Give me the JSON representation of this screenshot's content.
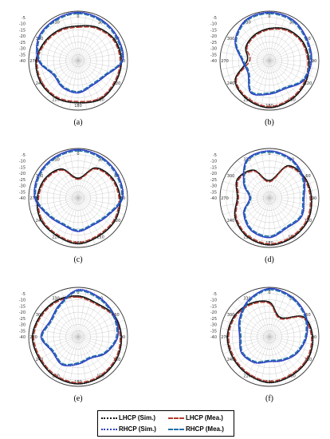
{
  "colors": {
    "lhcp_sim": "#111111",
    "lhcp_mea": "#b03a2e",
    "rhcp_sim": "#2d3fc4",
    "rhcp_mea": "#1f6fa8",
    "grid": "#bdbdbd"
  },
  "legend": {
    "lhcp_sim": "LHCP (Sim.)",
    "lhcp_mea": "LHCP (Mea.)",
    "rhcp_sim": "RHCP (Sim.)",
    "rhcp_mea": "RHCP (Mea.)"
  },
  "chart_data": [
    {
      "type": "polar",
      "label": "(a)",
      "angle_ticks": [
        "0",
        "30",
        "60",
        "90",
        "120",
        "150",
        "180",
        "210",
        "240",
        "270",
        "300",
        "330"
      ],
      "radial_ticks": [
        "-5",
        "-10",
        "-15",
        "-20",
        "-25",
        "-30",
        "-35",
        "-40"
      ],
      "rlim": [
        -40,
        0
      ],
      "series": [
        {
          "name": "LHCP (Sim.)",
          "angles": [
            0,
            30,
            60,
            90,
            120,
            150,
            180,
            210,
            240,
            270,
            300,
            330
          ],
          "values": [
            -12,
            -9,
            -6,
            -5,
            -5,
            -4,
            -6,
            -5,
            -5,
            -6,
            -9,
            -11
          ]
        },
        {
          "name": "LHCP (Mea.)",
          "angles": [
            0,
            30,
            60,
            90,
            120,
            150,
            180,
            210,
            240,
            270,
            300,
            330
          ],
          "values": [
            -13,
            -10,
            -7,
            -6,
            -6,
            -5,
            -7,
            -6,
            -6,
            -7,
            -10,
            -12
          ]
        },
        {
          "name": "RHCP (Sim.)",
          "angles": [
            0,
            30,
            60,
            90,
            120,
            150,
            180,
            210,
            240,
            270,
            300,
            330
          ],
          "values": [
            -1,
            -2,
            -3,
            -4,
            -15,
            -17,
            -14,
            -15,
            -17,
            -8,
            -3,
            -2
          ]
        },
        {
          "name": "RHCP (Mea.)",
          "angles": [
            0,
            30,
            60,
            90,
            120,
            150,
            180,
            210,
            240,
            270,
            300,
            330
          ],
          "values": [
            -2,
            -3,
            -4,
            -5,
            -16,
            -18,
            -15,
            -16,
            -18,
            -9,
            -4,
            -3
          ]
        }
      ]
    },
    {
      "type": "polar",
      "label": "(b)",
      "angle_ticks": [
        "0",
        "30",
        "60",
        "90",
        "120",
        "150",
        "180",
        "210",
        "240",
        "270",
        "300",
        "330"
      ],
      "radial_ticks": [
        "-5",
        "-10",
        "-15",
        "-20",
        "-25",
        "-30",
        "-35",
        "-40"
      ],
      "rlim": [
        -40,
        0
      ],
      "series": [
        {
          "name": "LHCP (Sim.)",
          "angles": [
            0,
            30,
            60,
            90,
            120,
            150,
            180,
            210,
            240,
            270,
            300,
            330
          ],
          "values": [
            -14,
            -11,
            -9,
            -8,
            -6,
            -4,
            -2,
            -4,
            -8,
            -22,
            -18,
            -16
          ]
        },
        {
          "name": "LHCP (Mea.)",
          "angles": [
            0,
            30,
            60,
            90,
            120,
            150,
            180,
            210,
            240,
            270,
            300,
            330
          ],
          "values": [
            -15,
            -12,
            -10,
            -9,
            -7,
            -5,
            -3,
            -5,
            -9,
            -24,
            -19,
            -17
          ]
        },
        {
          "name": "RHCP (Sim.)",
          "angles": [
            0,
            30,
            60,
            90,
            120,
            150,
            180,
            210,
            240,
            270,
            300,
            330
          ],
          "values": [
            -1,
            -2,
            -5,
            -6,
            -8,
            -14,
            -13,
            -10,
            -20,
            -18,
            -8,
            -2
          ]
        },
        {
          "name": "RHCP (Mea.)",
          "angles": [
            0,
            30,
            60,
            90,
            120,
            150,
            180,
            210,
            240,
            270,
            300,
            330
          ],
          "values": [
            -2,
            -3,
            -6,
            -7,
            -9,
            -15,
            -14,
            -11,
            -21,
            -19,
            -9,
            -3
          ]
        }
      ]
    },
    {
      "type": "polar",
      "label": "(c)",
      "angle_ticks": [
        "0",
        "30",
        "60",
        "90",
        "120",
        "150",
        "180",
        "210",
        "240",
        "270",
        "300",
        "330"
      ],
      "radial_ticks": [
        "-5",
        "-10",
        "-15",
        "-20",
        "-25",
        "-30",
        "-35",
        "-40"
      ],
      "rlim": [
        -40,
        0
      ],
      "series": [
        {
          "name": "LHCP (Sim.)",
          "angles": [
            0,
            30,
            60,
            90,
            120,
            150,
            180,
            210,
            240,
            270,
            300,
            330
          ],
          "values": [
            -24,
            -12,
            -8,
            -6,
            -5,
            -5,
            -3,
            -5,
            -5,
            -7,
            -9,
            -13
          ]
        },
        {
          "name": "LHCP (Mea.)",
          "angles": [
            0,
            30,
            60,
            90,
            120,
            150,
            180,
            210,
            240,
            270,
            300,
            330
          ],
          "values": [
            -25,
            -13,
            -9,
            -7,
            -6,
            -6,
            -4,
            -6,
            -6,
            -8,
            -10,
            -14
          ]
        },
        {
          "name": "RHCP (Sim.)",
          "angles": [
            0,
            30,
            60,
            90,
            120,
            150,
            180,
            210,
            240,
            270,
            300,
            330
          ],
          "values": [
            -1,
            -2,
            -3,
            -4,
            -12,
            -15,
            -13,
            -15,
            -12,
            -5,
            -3,
            -2
          ]
        },
        {
          "name": "RHCP (Mea.)",
          "angles": [
            0,
            30,
            60,
            90,
            120,
            150,
            180,
            210,
            240,
            270,
            300,
            330
          ],
          "values": [
            -2,
            -3,
            -4,
            -5,
            -13,
            -16,
            -14,
            -16,
            -13,
            -6,
            -4,
            -3
          ]
        }
      ]
    },
    {
      "type": "polar",
      "label": "(d)",
      "angle_ticks": [
        "0",
        "30",
        "60",
        "90",
        "120",
        "150",
        "180",
        "210",
        "240",
        "270",
        "300",
        "330"
      ],
      "radial_ticks": [
        "-5",
        "-10",
        "-15",
        "-20",
        "-25",
        "-30",
        "-35",
        "-40"
      ],
      "rlim": [
        -40,
        0
      ],
      "series": [
        {
          "name": "LHCP (Sim.)",
          "angles": [
            0,
            30,
            60,
            90,
            120,
            150,
            180,
            210,
            240,
            270,
            300,
            330
          ],
          "values": [
            -26,
            -10,
            -7,
            -6,
            -4,
            -3,
            -2,
            -4,
            -8,
            -14,
            -10,
            -14
          ]
        },
        {
          "name": "LHCP (Mea.)",
          "angles": [
            0,
            30,
            60,
            90,
            120,
            150,
            180,
            210,
            240,
            270,
            300,
            330
          ],
          "values": [
            -27,
            -11,
            -8,
            -7,
            -5,
            -4,
            -3,
            -5,
            -9,
            -15,
            -11,
            -15
          ]
        },
        {
          "name": "RHCP (Sim.)",
          "angles": [
            0,
            30,
            60,
            90,
            120,
            150,
            180,
            210,
            240,
            270,
            300,
            330
          ],
          "values": [
            -2,
            -4,
            -8,
            -12,
            -10,
            -12,
            -8,
            -10,
            -16,
            -24,
            -16,
            -4
          ]
        },
        {
          "name": "RHCP (Mea.)",
          "angles": [
            0,
            30,
            60,
            90,
            120,
            150,
            180,
            210,
            240,
            270,
            300,
            330
          ],
          "values": [
            -3,
            -5,
            -9,
            -13,
            -11,
            -13,
            -9,
            -11,
            -17,
            -25,
            -17,
            -5
          ]
        }
      ]
    },
    {
      "type": "polar",
      "label": "(e)",
      "angle_ticks": [
        "0",
        "30",
        "60",
        "90",
        "120",
        "150",
        "180",
        "210",
        "240",
        "270",
        "300",
        "330"
      ],
      "radial_ticks": [
        "-5",
        "-10",
        "-15",
        "-20",
        "-25",
        "-30",
        "-35",
        "-40"
      ],
      "rlim": [
        -40,
        0
      ],
      "series": [
        {
          "name": "LHCP (Sim.)",
          "angles": [
            0,
            30,
            60,
            90,
            120,
            150,
            180,
            210,
            240,
            270,
            300,
            330
          ],
          "values": [
            -7,
            -9,
            -6,
            -5,
            -4,
            -3,
            -2,
            -3,
            -4,
            -3,
            -5,
            -6
          ]
        },
        {
          "name": "LHCP (Mea.)",
          "angles": [
            0,
            30,
            60,
            90,
            120,
            150,
            180,
            210,
            240,
            270,
            300,
            330
          ],
          "values": [
            -8,
            -10,
            -7,
            -6,
            -5,
            -4,
            -3,
            -4,
            -5,
            -4,
            -6,
            -7
          ]
        },
        {
          "name": "RHCP (Sim.)",
          "angles": [
            0,
            30,
            60,
            90,
            120,
            150,
            180,
            210,
            240,
            270,
            300,
            330
          ],
          "values": [
            -2,
            -4,
            -6,
            -8,
            -14,
            -20,
            -18,
            -14,
            -16,
            -10,
            -14,
            -10
          ]
        },
        {
          "name": "RHCP (Mea.)",
          "angles": [
            0,
            30,
            60,
            90,
            120,
            150,
            180,
            210,
            240,
            270,
            300,
            330
          ],
          "values": [
            -3,
            -5,
            -7,
            -9,
            -15,
            -21,
            -19,
            -15,
            -17,
            -11,
            -15,
            -11
          ]
        }
      ]
    },
    {
      "type": "polar",
      "label": "(f)",
      "angle_ticks": [
        "0",
        "30",
        "60",
        "90",
        "120",
        "150",
        "180",
        "210",
        "240",
        "270",
        "300",
        "330"
      ],
      "radial_ticks": [
        "-5",
        "-10",
        "-15",
        "-20",
        "-25",
        "-30",
        "-35",
        "-40"
      ],
      "rlim": [
        -40,
        0
      ],
      "series": [
        {
          "name": "LHCP (Sim.)",
          "angles": [
            0,
            30,
            60,
            90,
            120,
            150,
            180,
            210,
            240,
            270,
            300,
            330
          ],
          "values": [
            -12,
            -22,
            -8,
            -5,
            -4,
            -4,
            -3,
            -5,
            -6,
            -6,
            -7,
            -9
          ]
        },
        {
          "name": "LHCP (Mea.)",
          "angles": [
            0,
            30,
            60,
            90,
            120,
            150,
            180,
            210,
            240,
            270,
            300,
            330
          ],
          "values": [
            -13,
            -23,
            -9,
            -6,
            -5,
            -5,
            -4,
            -6,
            -7,
            -7,
            -8,
            -10
          ]
        },
        {
          "name": "RHCP (Sim.)",
          "angles": [
            0,
            30,
            60,
            90,
            120,
            150,
            180,
            210,
            240,
            270,
            300,
            330
          ],
          "values": [
            -1,
            -3,
            -6,
            -10,
            -14,
            -18,
            -20,
            -16,
            -14,
            -16,
            -12,
            -6
          ]
        },
        {
          "name": "RHCP (Mea.)",
          "angles": [
            0,
            30,
            60,
            90,
            120,
            150,
            180,
            210,
            240,
            270,
            300,
            330
          ],
          "values": [
            -2,
            -4,
            -7,
            -11,
            -15,
            -19,
            -21,
            -17,
            -15,
            -17,
            -13,
            -7
          ]
        }
      ]
    }
  ]
}
